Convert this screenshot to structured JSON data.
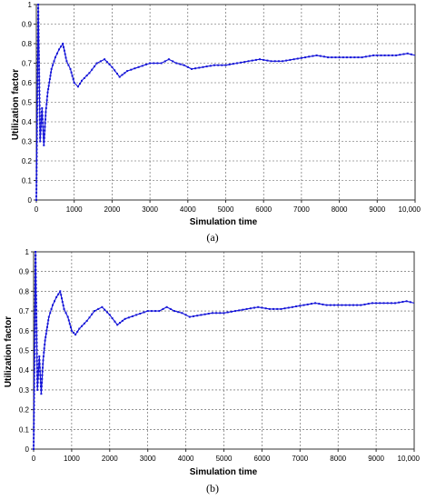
{
  "chart_data": [
    {
      "type": "line",
      "caption": "(a)",
      "xlabel": "Simulation time",
      "ylabel": "Utilization  factor",
      "xlim": [
        0,
        10000
      ],
      "ylim": [
        0,
        1
      ],
      "xticks": [
        "0",
        "1000",
        "2000",
        "3000",
        "4000",
        "5000",
        "6000",
        "7000",
        "8000",
        "9000",
        "10,000"
      ],
      "yticks": [
        "0",
        "0.1",
        "0.2",
        "0.3",
        "0.4",
        "0.5",
        "0.6",
        "0.7",
        "0.8",
        "0.9",
        "1"
      ],
      "grid": true,
      "series": [
        {
          "color": "#1414d8",
          "x": [
            0,
            50,
            100,
            150,
            200,
            250,
            300,
            400,
            500,
            600,
            700,
            800,
            900,
            1000,
            1100,
            1200,
            1400,
            1600,
            1800,
            2000,
            2200,
            2400,
            2700,
            3000,
            3300,
            3500,
            3700,
            3900,
            4100,
            4400,
            4700,
            5000,
            5300,
            5600,
            5900,
            6200,
            6500,
            6800,
            7100,
            7400,
            7700,
            8000,
            8300,
            8600,
            8900,
            9200,
            9500,
            9800,
            10000
          ],
          "y": [
            0,
            1,
            0.3,
            0.47,
            0.28,
            0.45,
            0.55,
            0.67,
            0.73,
            0.77,
            0.8,
            0.71,
            0.67,
            0.6,
            0.58,
            0.61,
            0.65,
            0.7,
            0.72,
            0.68,
            0.63,
            0.66,
            0.68,
            0.7,
            0.7,
            0.72,
            0.7,
            0.69,
            0.67,
            0.68,
            0.69,
            0.69,
            0.7,
            0.71,
            0.72,
            0.71,
            0.71,
            0.72,
            0.73,
            0.74,
            0.73,
            0.73,
            0.73,
            0.73,
            0.74,
            0.74,
            0.74,
            0.75,
            0.74
          ]
        }
      ]
    },
    {
      "type": "line",
      "caption": "(b)",
      "xlabel": "Simulation time",
      "ylabel": "Utilization  factor",
      "xlim": [
        0,
        10000
      ],
      "ylim": [
        0,
        1
      ],
      "xticks": [
        "0",
        "1000",
        "2000",
        "3000",
        "4000",
        "5000",
        "6000",
        "7000",
        "8000",
        "9000",
        "10,000"
      ],
      "yticks": [
        "0",
        "0.1",
        "0.2",
        "0.3",
        "0.4",
        "0.5",
        "0.6",
        "0.7",
        "0.8",
        "0.9",
        "1"
      ],
      "grid": true,
      "series": [
        {
          "color": "#1414d8",
          "x": [
            0,
            50,
            100,
            150,
            200,
            250,
            300,
            400,
            500,
            600,
            700,
            800,
            900,
            1000,
            1100,
            1200,
            1400,
            1600,
            1800,
            2000,
            2200,
            2400,
            2700,
            3000,
            3300,
            3500,
            3700,
            3900,
            4100,
            4400,
            4700,
            5000,
            5300,
            5600,
            5900,
            6200,
            6500,
            6800,
            7100,
            7400,
            7700,
            8000,
            8300,
            8600,
            8900,
            9200,
            9500,
            9800,
            10000
          ],
          "y": [
            0,
            1,
            0.3,
            0.47,
            0.28,
            0.45,
            0.55,
            0.67,
            0.73,
            0.77,
            0.8,
            0.71,
            0.67,
            0.6,
            0.58,
            0.61,
            0.65,
            0.7,
            0.72,
            0.68,
            0.63,
            0.66,
            0.68,
            0.7,
            0.7,
            0.72,
            0.7,
            0.69,
            0.67,
            0.68,
            0.69,
            0.69,
            0.7,
            0.71,
            0.72,
            0.71,
            0.71,
            0.72,
            0.73,
            0.74,
            0.73,
            0.73,
            0.73,
            0.73,
            0.74,
            0.74,
            0.74,
            0.75,
            0.74
          ]
        }
      ]
    }
  ]
}
